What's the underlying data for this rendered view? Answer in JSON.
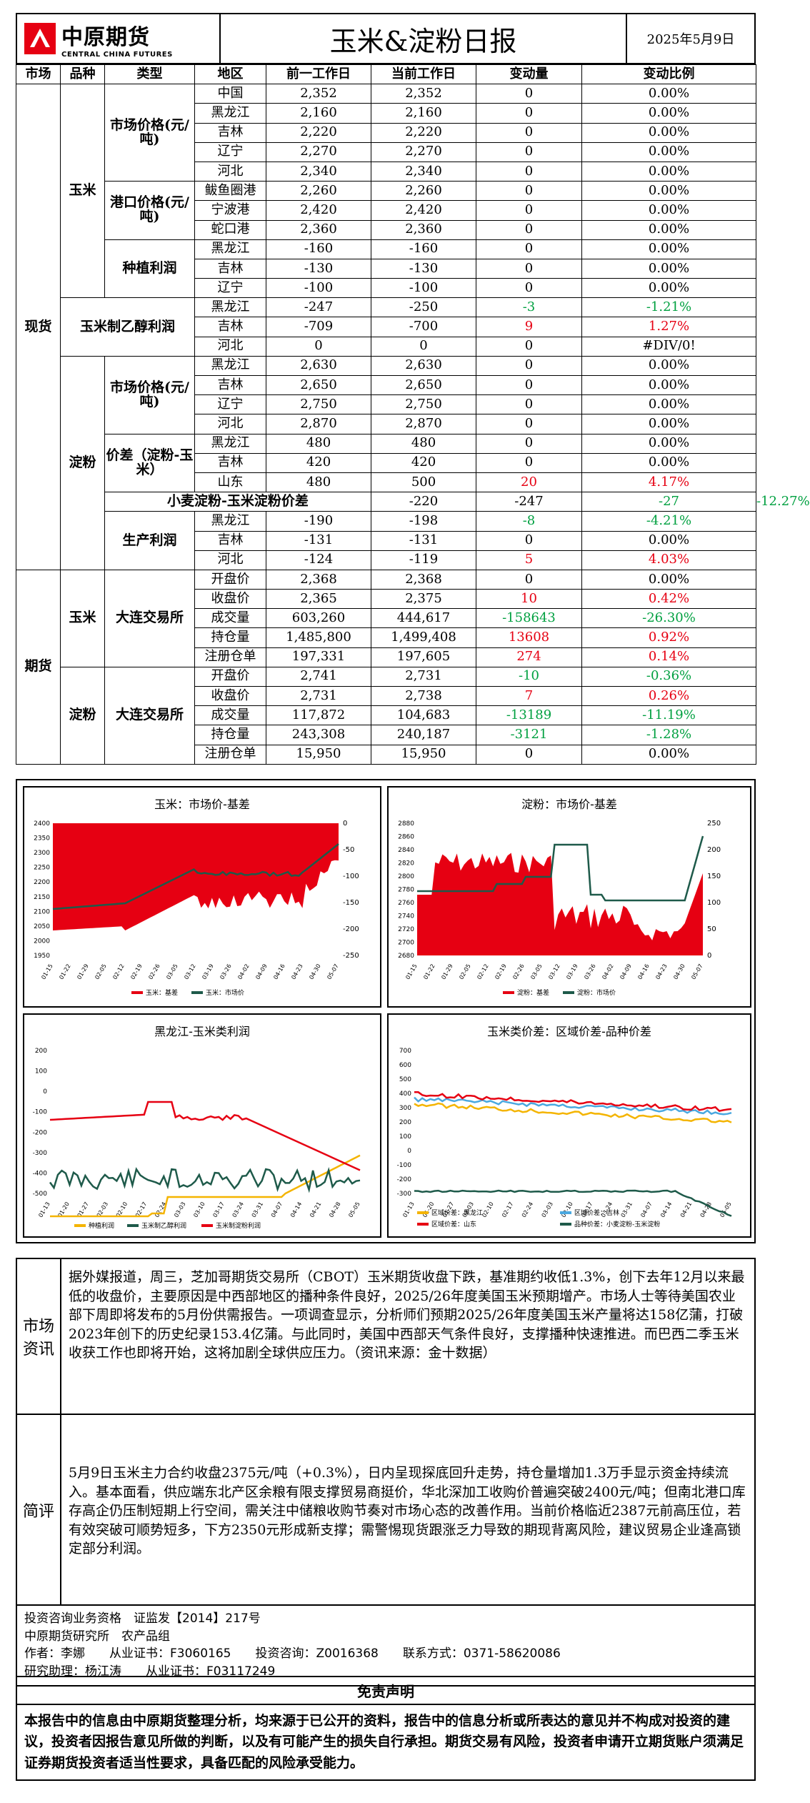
{
  "header": {
    "logo_cn": "中原期货",
    "logo_en": "CENTRAL CHINA FUTURES",
    "title": "玉米&淀粉日报",
    "date": "2025年5月9日"
  },
  "colhead": [
    "市场",
    "品种",
    "类型",
    "地区",
    "前一工作日",
    "当前工作日",
    "变动量",
    "变动比例"
  ],
  "groups": {
    "spot": "现货",
    "futures": "期货",
    "corn": "玉米",
    "starch": "淀粉",
    "ethanol": "玉米制乙醇利润",
    "corn_mkt": "市场价格(元/吨)",
    "port": "港口价格(元/吨)",
    "plant": "种植利润",
    "starch_mkt": "市场价格(元/吨)",
    "spread": "价差（淀粉-玉米）",
    "wheat_spread": "小麦淀粉-玉米淀粉价差",
    "prod": "生产利润",
    "dce": "大连交易所",
    "dce2": "大连交易所"
  },
  "rows": [
    [
      "中国",
      "2,352",
      "2,352",
      "0",
      "0.00%",
      "",
      ""
    ],
    [
      "黑龙江",
      "2,160",
      "2,160",
      "0",
      "0.00%",
      "",
      ""
    ],
    [
      "吉林",
      "2,220",
      "2,220",
      "0",
      "0.00%",
      "",
      ""
    ],
    [
      "辽宁",
      "2,270",
      "2,270",
      "0",
      "0.00%",
      "",
      ""
    ],
    [
      "河北",
      "2,340",
      "2,340",
      "0",
      "0.00%",
      "",
      ""
    ],
    [
      "鲅鱼圈港",
      "2,260",
      "2,260",
      "0",
      "0.00%",
      "",
      ""
    ],
    [
      "宁波港",
      "2,420",
      "2,420",
      "0",
      "0.00%",
      "",
      ""
    ],
    [
      "蛇口港",
      "2,360",
      "2,360",
      "0",
      "0.00%",
      "",
      ""
    ],
    [
      "黑龙江",
      "-160",
      "-160",
      "0",
      "0.00%",
      "",
      ""
    ],
    [
      "吉林",
      "-130",
      "-130",
      "0",
      "0.00%",
      "",
      ""
    ],
    [
      "辽宁",
      "-100",
      "-100",
      "0",
      "0.00%",
      "",
      ""
    ],
    [
      "黑龙江",
      "-247",
      "-250",
      "-3",
      "-1.21%",
      "grn",
      "grn"
    ],
    [
      "吉林",
      "-709",
      "-700",
      "9",
      "1.27%",
      "red",
      "red"
    ],
    [
      "河北",
      "0",
      "0",
      "0",
      "#DIV/0!",
      "",
      ""
    ],
    [
      "黑龙江",
      "2,630",
      "2,630",
      "0",
      "0.00%",
      "",
      ""
    ],
    [
      "吉林",
      "2,650",
      "2,650",
      "0",
      "0.00%",
      "",
      ""
    ],
    [
      "辽宁",
      "2,750",
      "2,750",
      "0",
      "0.00%",
      "",
      ""
    ],
    [
      "河北",
      "2,870",
      "2,870",
      "0",
      "0.00%",
      "",
      ""
    ],
    [
      "黑龙江",
      "480",
      "480",
      "0",
      "0.00%",
      "",
      ""
    ],
    [
      "吉林",
      "420",
      "420",
      "0",
      "0.00%",
      "",
      ""
    ],
    [
      "山东",
      "480",
      "500",
      "20",
      "4.17%",
      "red",
      "red"
    ],
    [
      "",
      "-220",
      "-247",
      "-27",
      "-12.27%",
      "grn",
      "grn"
    ],
    [
      "黑龙江",
      "-190",
      "-198",
      "-8",
      "-4.21%",
      "grn",
      "grn"
    ],
    [
      "吉林",
      "-131",
      "-131",
      "0",
      "0.00%",
      "",
      ""
    ],
    [
      "河北",
      "-124",
      "-119",
      "5",
      "4.03%",
      "red",
      "red"
    ],
    [
      "开盘价",
      "2,368",
      "2,368",
      "0",
      "0.00%",
      "",
      ""
    ],
    [
      "收盘价",
      "2,365",
      "2,375",
      "10",
      "0.42%",
      "red",
      "red"
    ],
    [
      "成交量",
      "603,260",
      "444,617",
      "-158643",
      "-26.30%",
      "grn",
      "grn"
    ],
    [
      "持仓量",
      "1,485,800",
      "1,499,408",
      "13608",
      "0.92%",
      "red",
      "red"
    ],
    [
      "注册仓单",
      "197,331",
      "197,605",
      "274",
      "0.14%",
      "red",
      "red"
    ],
    [
      "开盘价",
      "2,741",
      "2,731",
      "-10",
      "-0.36%",
      "grn",
      "grn"
    ],
    [
      "收盘价",
      "2,731",
      "2,738",
      "7",
      "0.26%",
      "red",
      "red"
    ],
    [
      "成交量",
      "117,872",
      "104,683",
      "-13189",
      "-11.19%",
      "grn",
      "grn"
    ],
    [
      "持仓量",
      "243,308",
      "240,187",
      "-3121",
      "-1.28%",
      "grn",
      "grn"
    ],
    [
      "注册仓单",
      "15,950",
      "15,950",
      "0",
      "0.00%",
      "",
      ""
    ]
  ],
  "charts": {
    "c1": {
      "title": "玉米：市场价-基差",
      "legend": [
        "玉米：基差",
        "玉米：市场价"
      ],
      "left": [
        "2400",
        "2350",
        "2300",
        "2250",
        "2200",
        "2150",
        "2100",
        "2050",
        "2000",
        "1950"
      ],
      "right": [
        "0",
        "-50",
        "-100",
        "-150",
        "-200",
        "-250"
      ],
      "x": [
        "01-15",
        "01-22",
        "01-29",
        "02-05",
        "02-12",
        "02-19",
        "02-26",
        "03-05",
        "03-12",
        "03-19",
        "03-26",
        "04-02",
        "04-09",
        "04-16",
        "04-23",
        "04-30",
        "05-07"
      ]
    },
    "c2": {
      "title": "淀粉：市场价-基差",
      "legend": [
        "淀粉：基差",
        "淀粉：市场价"
      ],
      "left": [
        "2880",
        "2860",
        "2840",
        "2820",
        "2800",
        "2780",
        "2760",
        "2740",
        "2720",
        "2700",
        "2680"
      ],
      "right": [
        "250",
        "200",
        "150",
        "100",
        "50",
        "0"
      ],
      "x": [
        "01-15",
        "01-22",
        "01-29",
        "02-05",
        "02-12",
        "02-19",
        "02-26",
        "03-05",
        "03-12",
        "03-19",
        "03-26",
        "04-02",
        "04-09",
        "04-16",
        "04-23",
        "04-30",
        "05-07"
      ]
    },
    "c3": {
      "title": "黑龙江-玉米类利润",
      "legend": [
        "种植利润",
        "玉米制乙醇利润",
        "玉米制淀粉利润"
      ],
      "left": [
        "200",
        "100",
        "0",
        "-100",
        "-200",
        "-300",
        "-400",
        "-500"
      ],
      "x": [
        "01-13",
        "01-20",
        "01-27",
        "02-03",
        "02-10",
        "02-17",
        "02-24",
        "03-03",
        "03-10",
        "03-17",
        "03-24",
        "03-31",
        "04-07",
        "04-14",
        "04-21",
        "04-28",
        "05-05"
      ]
    },
    "c4": {
      "title": "玉米类价差：区域价差-品种价差",
      "legend": [
        "区域价差：黑龙江",
        "区域价差：吉林",
        "区域价差：山东",
        "品种价差：小麦淀粉-玉米淀粉"
      ],
      "left": [
        "700",
        "600",
        "500",
        "400",
        "300",
        "200",
        "100",
        "0",
        "-100",
        "-200",
        "-300"
      ],
      "x": [
        "01-13",
        "01-20",
        "01-27",
        "02-03",
        "02-10",
        "02-17",
        "02-24",
        "03-03",
        "03-10",
        "03-17",
        "03-24",
        "03-31",
        "04-07",
        "04-14",
        "04-21",
        "04-28",
        "05-05"
      ]
    }
  },
  "news": {
    "label": "市场资讯",
    "text": "据外媒报道，周三，芝加哥期货交易所（CBOT）玉米期货收盘下跌，基准期约收低1.3%，创下去年12月以来最低的收盘价，主要原因是中西部地区的播种条件良好，2025/26年度美国玉米预期增产。市场人士等待美国农业部下周即将发布的5月份供需报告。一项调查显示，分析师们预期2025/26年度美国玉米产量将达158亿蒲，打破2023年创下的历史纪录153.4亿蒲。与此同时，美国中西部天气条件良好，支撑播种快速推进。而巴西二季玉米收获工作也即将开始，这将加剧全球供应压力。（资讯来源：金十数据）"
  },
  "comment": {
    "label": "简评",
    "text": "5月9日玉米主力合约收盘2375元/吨（+0.3%），日内呈现探底回升走势，持仓量增加1.3万手显示资金持续流入。基本面看，供应端东北产区余粮有限支撑贸易商挺价，华北深加工收购价普遍突破2400元/吨；但南北港口库存高企仍压制短期上行空间，需关注中储粮收购节奏对市场心态的改善作用。当前价格临近2387元前高压位，若有效突破可顺势短多，下方2350元形成新支撑；需警惕现货跟涨乏力导致的期现背离风险，建议贸易企业逢高锁定部分利润。"
  },
  "footer": [
    "投资咨询业务资格　证监发【2014】217号",
    "中原期货研究所　农产品组",
    "作者：李娜　　从业证书：F3060165　　投资咨询：Z0016368　　联系方式：0371-58620086",
    "研究助理：杨江涛　　从业证书：F03117249"
  ],
  "disclaimer": {
    "title": "免责声明",
    "text": "本报告中的信息由中原期货整理分析，均来源于已公开的资料，报告中的信息分析或所表达的意见并不构成对投资的建议，投资者因报告意见所做的判断，以及有可能产生的损失自行承担。期货交易有风险，投资者申请开立期货账户须满足证券期货投资者适当性要求，具备匹配的风险承受能力。"
  }
}
